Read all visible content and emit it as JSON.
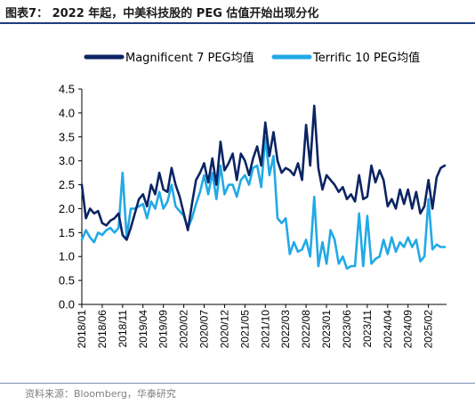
{
  "header": {
    "title": "图表7：  2022 年起，中美科技股的 PEG 估值开始出现分化"
  },
  "footer": {
    "source": "资料来源：Bloomberg，华泰研究"
  },
  "chart_data": {
    "type": "line",
    "title": "",
    "xlabel": "",
    "ylabel": "",
    "ylim": [
      0.0,
      4.5
    ],
    "yticks": [
      "0.0",
      "0.5",
      "1.0",
      "1.5",
      "2.0",
      "2.5",
      "3.0",
      "3.5",
      "4.0",
      "4.5"
    ],
    "xticks": [
      "2018/01",
      "2018/06",
      "2018/11",
      "2019/04",
      "2019/09",
      "2020/02",
      "2020/07",
      "2020/12",
      "2021/05",
      "2021/10",
      "2022/03",
      "2022/08",
      "2023/01",
      "2023/06",
      "2023/11",
      "2024/04",
      "2024/09",
      "2025/02"
    ],
    "legend": "top",
    "grid": false,
    "series": [
      {
        "name": "Magnificent 7 PEG均值",
        "color": "#0b2463",
        "x": [
          "2018/01",
          "2018/02",
          "2018/03",
          "2018/04",
          "2018/05",
          "2018/06",
          "2018/07",
          "2018/08",
          "2018/09",
          "2018/10",
          "2018/11",
          "2018/12",
          "2019/01",
          "2019/02",
          "2019/03",
          "2019/04",
          "2019/05",
          "2019/06",
          "2019/07",
          "2019/08",
          "2019/09",
          "2019/10",
          "2019/11",
          "2019/12",
          "2020/01",
          "2020/02",
          "2020/03",
          "2020/04",
          "2020/05",
          "2020/06",
          "2020/07",
          "2020/08",
          "2020/09",
          "2020/10",
          "2020/11",
          "2020/12",
          "2021/01",
          "2021/02",
          "2021/03",
          "2021/04",
          "2021/05",
          "2021/06",
          "2021/07",
          "2021/08",
          "2021/09",
          "2021/10",
          "2021/11",
          "2021/12",
          "2022/01",
          "2022/02",
          "2022/03",
          "2022/04",
          "2022/05",
          "2022/06",
          "2022/07",
          "2022/08",
          "2022/09",
          "2022/10",
          "2022/11",
          "2022/12",
          "2023/01",
          "2023/02",
          "2023/03",
          "2023/04",
          "2023/05",
          "2023/06",
          "2023/07",
          "2023/08",
          "2023/09",
          "2023/10",
          "2023/11",
          "2023/12",
          "2024/01",
          "2024/02",
          "2024/03",
          "2024/04",
          "2024/05",
          "2024/06",
          "2024/07",
          "2024/08",
          "2024/09",
          "2024/10",
          "2024/11",
          "2024/12",
          "2025/01",
          "2025/02",
          "2025/03",
          "2025/04",
          "2025/05",
          "2025/06"
        ],
        "values": [
          2.5,
          1.8,
          2.0,
          1.9,
          1.95,
          1.7,
          1.65,
          1.75,
          1.8,
          1.9,
          1.45,
          1.35,
          1.6,
          1.9,
          2.2,
          2.3,
          2.05,
          2.5,
          2.3,
          2.75,
          2.4,
          2.35,
          2.85,
          2.5,
          2.25,
          1.9,
          1.55,
          2.1,
          2.6,
          2.75,
          2.95,
          2.55,
          3.05,
          2.5,
          3.4,
          2.8,
          2.95,
          3.15,
          2.6,
          3.15,
          3.0,
          2.7,
          3.05,
          3.3,
          2.9,
          3.8,
          3.1,
          3.6,
          3.0,
          2.75,
          2.85,
          2.8,
          2.7,
          2.95,
          2.6,
          3.75,
          2.9,
          4.15,
          2.85,
          2.4,
          2.7,
          2.6,
          2.5,
          2.35,
          2.45,
          2.2,
          2.3,
          2.15,
          2.7,
          2.2,
          2.25,
          2.9,
          2.55,
          2.8,
          2.6,
          2.05,
          2.2,
          2.0,
          2.4,
          2.1,
          2.4,
          2.0,
          2.35,
          1.9,
          2.05,
          2.6,
          2.0,
          2.65,
          2.85,
          2.9
        ]
      },
      {
        "name": "Terrific 10 PEG均值",
        "color": "#22a9e6",
        "x": [
          "2018/01",
          "2018/02",
          "2018/03",
          "2018/04",
          "2018/05",
          "2018/06",
          "2018/07",
          "2018/08",
          "2018/09",
          "2018/10",
          "2018/11",
          "2018/12",
          "2019/01",
          "2019/02",
          "2019/03",
          "2019/04",
          "2019/05",
          "2019/06",
          "2019/07",
          "2019/08",
          "2019/09",
          "2019/10",
          "2019/11",
          "2019/12",
          "2020/01",
          "2020/02",
          "2020/03",
          "2020/04",
          "2020/05",
          "2020/06",
          "2020/07",
          "2020/08",
          "2020/09",
          "2020/10",
          "2020/11",
          "2020/12",
          "2021/01",
          "2021/02",
          "2021/03",
          "2021/04",
          "2021/05",
          "2021/06",
          "2021/07",
          "2021/08",
          "2021/09",
          "2021/10",
          "2021/11",
          "2021/12",
          "2022/01",
          "2022/02",
          "2022/03",
          "2022/04",
          "2022/05",
          "2022/06",
          "2022/07",
          "2022/08",
          "2022/09",
          "2022/10",
          "2022/11",
          "2022/12",
          "2023/01",
          "2023/02",
          "2023/03",
          "2023/04",
          "2023/05",
          "2023/06",
          "2023/07",
          "2023/08",
          "2023/09",
          "2023/10",
          "2023/11",
          "2023/12",
          "2024/01",
          "2024/02",
          "2024/03",
          "2024/04",
          "2024/05",
          "2024/06",
          "2024/07",
          "2024/08",
          "2024/09",
          "2024/10",
          "2024/11",
          "2024/12",
          "2025/01",
          "2025/02",
          "2025/03",
          "2025/04",
          "2025/05",
          "2025/06"
        ],
        "values": [
          1.35,
          1.55,
          1.4,
          1.3,
          1.5,
          1.45,
          1.55,
          1.6,
          1.5,
          1.6,
          2.75,
          1.4,
          2.0,
          2.0,
          2.05,
          2.1,
          1.8,
          2.15,
          2.0,
          2.35,
          2.0,
          2.15,
          2.5,
          2.05,
          1.95,
          1.85,
          1.6,
          1.8,
          2.1,
          2.35,
          2.7,
          2.3,
          2.75,
          2.2,
          2.9,
          2.3,
          2.5,
          2.5,
          2.25,
          2.6,
          2.7,
          2.5,
          2.85,
          2.9,
          2.45,
          3.5,
          2.7,
          3.1,
          1.8,
          1.7,
          1.8,
          1.05,
          1.3,
          1.1,
          1.15,
          1.35,
          1.0,
          2.25,
          0.8,
          1.3,
          0.85,
          1.55,
          1.35,
          0.85,
          1.0,
          0.75,
          0.8,
          0.8,
          1.9,
          0.8,
          1.85,
          0.85,
          0.95,
          1.0,
          1.35,
          1.05,
          1.4,
          1.1,
          1.3,
          1.2,
          1.4,
          1.2,
          1.35,
          0.9,
          1.0,
          2.2,
          1.15,
          1.25,
          1.2,
          1.2
        ]
      }
    ]
  }
}
